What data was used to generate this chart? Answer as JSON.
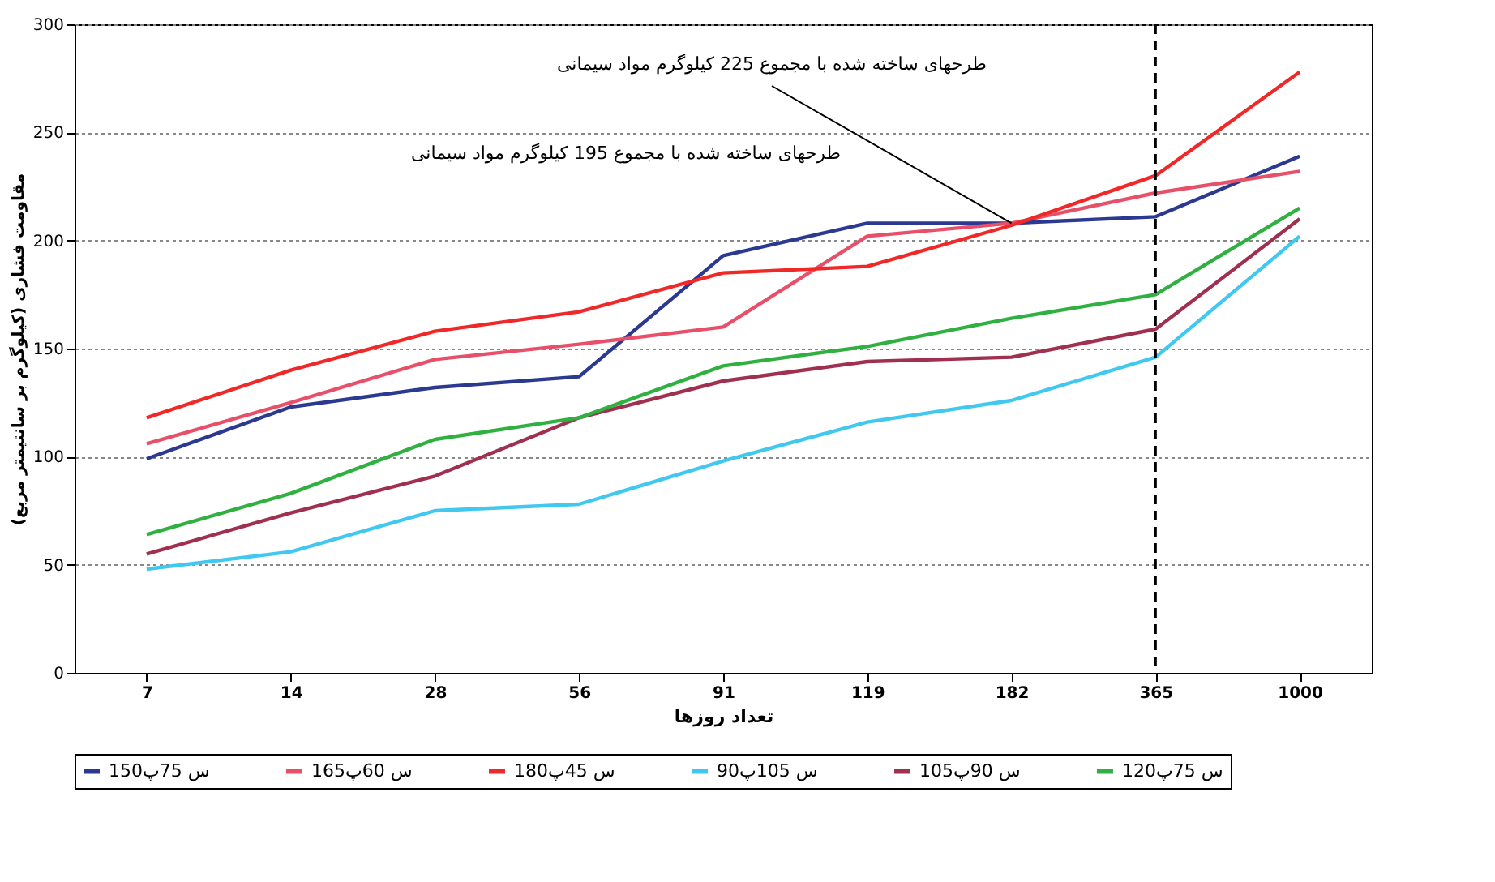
{
  "chart_data": {
    "type": "line",
    "xlabel": "تعداد روزها",
    "ylabel": "مقاومت فشاری (کیلوگرم بر سانتیمتر مربع)",
    "categories": [
      "7",
      "14",
      "28",
      "56",
      "91",
      "119",
      "182",
      "365",
      "1000"
    ],
    "series": [
      {
        "name": "150س 75پ",
        "color": "#2b3990",
        "values": [
          99,
          123,
          132,
          137,
          193,
          208,
          208,
          211,
          239
        ]
      },
      {
        "name": "165س 60پ",
        "color": "#e8506a",
        "values": [
          106,
          125,
          145,
          152,
          160,
          202,
          208,
          222,
          232
        ]
      },
      {
        "name": "180س 45پ",
        "color": "#f02828",
        "values": [
          118,
          140,
          158,
          167,
          185,
          188,
          207,
          230,
          278
        ]
      },
      {
        "name": "90س 105پ",
        "color": "#40c8f0",
        "values": [
          48,
          56,
          75,
          78,
          98,
          116,
          126,
          146,
          202
        ]
      },
      {
        "name": "105س 90پ",
        "color": "#a03050",
        "values": [
          55,
          74,
          91,
          118,
          135,
          144,
          146,
          159,
          210
        ]
      },
      {
        "name": "120س 75پ",
        "color": "#30b040",
        "values": [
          64,
          83,
          108,
          118,
          142,
          151,
          164,
          175,
          215
        ]
      }
    ],
    "ylim": [
      0,
      300
    ],
    "yticks": [
      0,
      50,
      100,
      150,
      200,
      250,
      300
    ],
    "grid": "y",
    "legend": "bottom",
    "marker": "none",
    "line_style": "solid",
    "ref_lines": [
      {
        "axis": "x",
        "value": "365",
        "line_style": "dashed",
        "color": "#000000"
      }
    ],
    "annotations": [
      {
        "text": "طرحهای ساخته شده با مجموع 225 کیلوگرم مواد سیمانی",
        "x": "182",
        "y": 208
      },
      "طرحهای ساخته شده با مجموع 195 کیلوگرم مواد سیمانی"
    ]
  }
}
